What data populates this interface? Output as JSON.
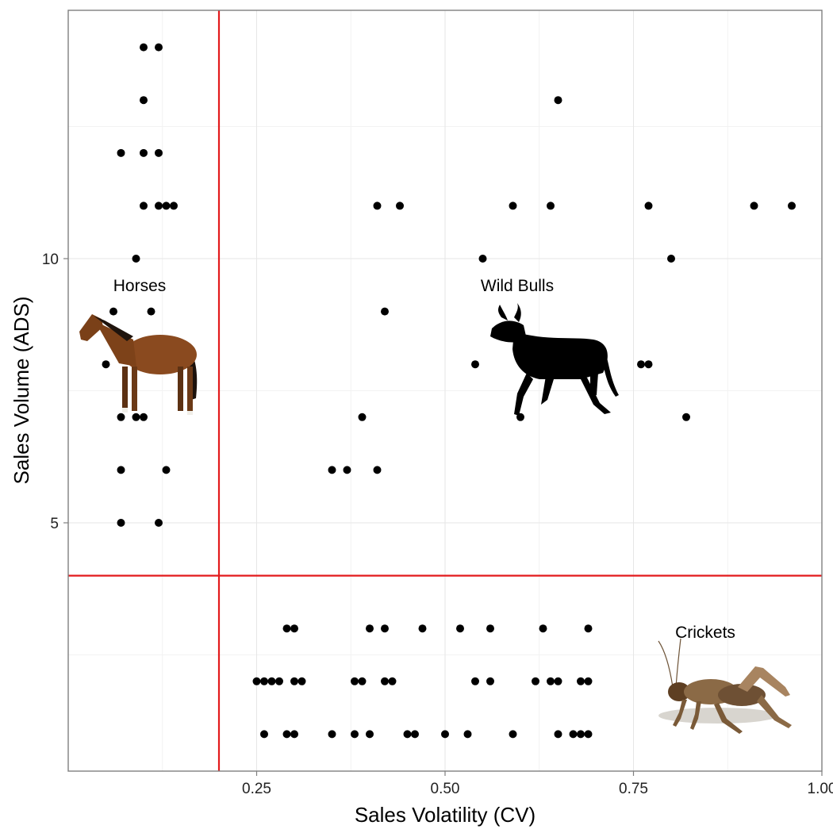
{
  "chart_data": {
    "type": "scatter",
    "title": "",
    "xlabel": "Sales Volatility (CV)",
    "ylabel": "Sales Volume (ADS)",
    "xlim": [
      0.0,
      1.0
    ],
    "ylim": [
      0.3,
      14.7
    ],
    "x_ticks": [
      0.25,
      0.5,
      0.75,
      1.0
    ],
    "x_tick_labels": [
      "0.25",
      "0.50",
      "0.75",
      "1.00"
    ],
    "y_ticks": [
      5,
      10
    ],
    "y_tick_labels": [
      "5",
      "10"
    ],
    "grid": true,
    "legend": "none",
    "threshold_lines": {
      "x": 0.2,
      "y": 4.0,
      "color": "#e31a1c"
    },
    "quadrant_labels": [
      "Horses",
      "Wild Bulls",
      "Crickets"
    ],
    "quadrant_images": [
      "horse",
      "bull-silhouette",
      "cricket"
    ],
    "point_color": "#000000",
    "points": [
      {
        "x": 0.1,
        "y": 14
      },
      {
        "x": 0.12,
        "y": 14
      },
      {
        "x": 0.1,
        "y": 13
      },
      {
        "x": 0.65,
        "y": 13
      },
      {
        "x": 0.07,
        "y": 12
      },
      {
        "x": 0.1,
        "y": 12
      },
      {
        "x": 0.12,
        "y": 12
      },
      {
        "x": 0.1,
        "y": 11
      },
      {
        "x": 0.12,
        "y": 11
      },
      {
        "x": 0.13,
        "y": 11
      },
      {
        "x": 0.14,
        "y": 11
      },
      {
        "x": 0.41,
        "y": 11
      },
      {
        "x": 0.44,
        "y": 11
      },
      {
        "x": 0.59,
        "y": 11
      },
      {
        "x": 0.64,
        "y": 11
      },
      {
        "x": 0.77,
        "y": 11
      },
      {
        "x": 0.91,
        "y": 11
      },
      {
        "x": 0.96,
        "y": 11
      },
      {
        "x": 0.09,
        "y": 10
      },
      {
        "x": 0.55,
        "y": 10
      },
      {
        "x": 0.8,
        "y": 10
      },
      {
        "x": 0.06,
        "y": 9
      },
      {
        "x": 0.11,
        "y": 9
      },
      {
        "x": 0.42,
        "y": 9
      },
      {
        "x": 0.05,
        "y": 8
      },
      {
        "x": 0.54,
        "y": 8
      },
      {
        "x": 0.76,
        "y": 8
      },
      {
        "x": 0.77,
        "y": 8
      },
      {
        "x": 0.07,
        "y": 7
      },
      {
        "x": 0.09,
        "y": 7
      },
      {
        "x": 0.1,
        "y": 7
      },
      {
        "x": 0.39,
        "y": 7
      },
      {
        "x": 0.6,
        "y": 7
      },
      {
        "x": 0.82,
        "y": 7
      },
      {
        "x": 0.07,
        "y": 6
      },
      {
        "x": 0.13,
        "y": 6
      },
      {
        "x": 0.35,
        "y": 6
      },
      {
        "x": 0.37,
        "y": 6
      },
      {
        "x": 0.41,
        "y": 6
      },
      {
        "x": 0.07,
        "y": 5
      },
      {
        "x": 0.12,
        "y": 5
      },
      {
        "x": 0.29,
        "y": 3
      },
      {
        "x": 0.3,
        "y": 3
      },
      {
        "x": 0.4,
        "y": 3
      },
      {
        "x": 0.42,
        "y": 3
      },
      {
        "x": 0.47,
        "y": 3
      },
      {
        "x": 0.52,
        "y": 3
      },
      {
        "x": 0.56,
        "y": 3
      },
      {
        "x": 0.63,
        "y": 3
      },
      {
        "x": 0.69,
        "y": 3
      },
      {
        "x": 0.25,
        "y": 2
      },
      {
        "x": 0.26,
        "y": 2
      },
      {
        "x": 0.27,
        "y": 2
      },
      {
        "x": 0.28,
        "y": 2
      },
      {
        "x": 0.3,
        "y": 2
      },
      {
        "x": 0.31,
        "y": 2
      },
      {
        "x": 0.38,
        "y": 2
      },
      {
        "x": 0.39,
        "y": 2
      },
      {
        "x": 0.42,
        "y": 2
      },
      {
        "x": 0.43,
        "y": 2
      },
      {
        "x": 0.54,
        "y": 2
      },
      {
        "x": 0.56,
        "y": 2
      },
      {
        "x": 0.62,
        "y": 2
      },
      {
        "x": 0.64,
        "y": 2
      },
      {
        "x": 0.65,
        "y": 2
      },
      {
        "x": 0.68,
        "y": 2
      },
      {
        "x": 0.69,
        "y": 2
      },
      {
        "x": 0.26,
        "y": 1
      },
      {
        "x": 0.29,
        "y": 1
      },
      {
        "x": 0.3,
        "y": 1
      },
      {
        "x": 0.35,
        "y": 1
      },
      {
        "x": 0.38,
        "y": 1
      },
      {
        "x": 0.4,
        "y": 1
      },
      {
        "x": 0.45,
        "y": 1
      },
      {
        "x": 0.46,
        "y": 1
      },
      {
        "x": 0.5,
        "y": 1
      },
      {
        "x": 0.53,
        "y": 1
      },
      {
        "x": 0.59,
        "y": 1
      },
      {
        "x": 0.65,
        "y": 1
      },
      {
        "x": 0.67,
        "y": 1
      },
      {
        "x": 0.68,
        "y": 1
      },
      {
        "x": 0.69,
        "y": 1
      }
    ]
  }
}
